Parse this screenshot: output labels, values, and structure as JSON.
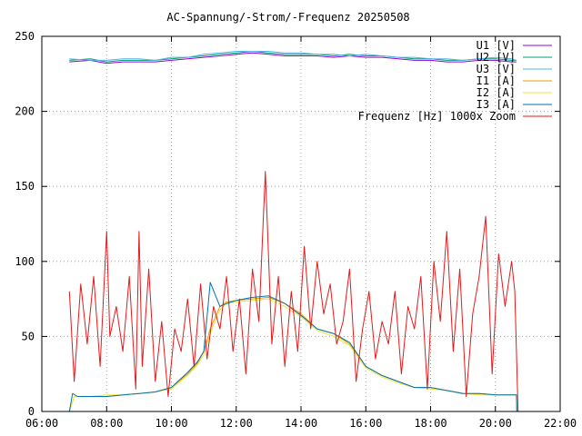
{
  "chart_data": {
    "type": "line",
    "title": "AC-Spannung/-Strom/-Frequenz 20250508",
    "xlabel": "",
    "ylabel": "",
    "xlim": [
      6,
      22
    ],
    "ylim": [
      0,
      250
    ],
    "x_ticks": [
      {
        "v": 6,
        "label": "06:00"
      },
      {
        "v": 8,
        "label": "08:00"
      },
      {
        "v": 10,
        "label": "10:00"
      },
      {
        "v": 12,
        "label": "12:00"
      },
      {
        "v": 14,
        "label": "14:00"
      },
      {
        "v": 16,
        "label": "16:00"
      },
      {
        "v": 18,
        "label": "18:00"
      },
      {
        "v": 20,
        "label": "20:00"
      },
      {
        "v": 22,
        "label": "22:00"
      }
    ],
    "y_ticks": [
      {
        "v": 0,
        "label": "0"
      },
      {
        "v": 50,
        "label": "50"
      },
      {
        "v": 100,
        "label": "100"
      },
      {
        "v": 150,
        "label": "150"
      },
      {
        "v": 200,
        "label": "200"
      },
      {
        "v": 250,
        "label": "250"
      }
    ],
    "grid": true,
    "legend_position": "top-right",
    "series": [
      {
        "name": "U1 [V]",
        "color": "#9400d3",
        "x": [
          6.85,
          7.5,
          8.0,
          8.5,
          9.0,
          9.5,
          10.0,
          10.5,
          11.0,
          11.5,
          12.0,
          12.5,
          13.0,
          13.5,
          14.0,
          14.5,
          15.0,
          15.5,
          16.0,
          16.5,
          17.0,
          17.5,
          18.0,
          18.5,
          19.0,
          19.5,
          20.0,
          20.5,
          20.65
        ],
        "y": [
          233,
          234,
          232,
          233,
          233,
          233,
          234,
          235,
          236,
          237,
          238,
          239,
          238,
          237,
          237,
          237,
          236,
          237,
          236,
          236,
          235,
          234,
          234,
          233,
          233,
          234,
          234,
          233,
          233
        ]
      },
      {
        "name": "U2 [V]",
        "color": "#009e73",
        "x": [
          6.85,
          7.5,
          8.0,
          8.5,
          9.0,
          9.5,
          10.0,
          10.5,
          11.0,
          11.5,
          12.0,
          12.5,
          13.0,
          13.5,
          14.0,
          14.5,
          15.0,
          15.5,
          16.0,
          16.5,
          17.0,
          17.5,
          18.0,
          18.5,
          19.0,
          19.5,
          20.0,
          20.5,
          20.65
        ],
        "y": [
          234,
          235,
          233,
          234,
          234,
          234,
          235,
          236,
          237,
          238,
          239,
          240,
          239,
          238,
          238,
          238,
          237,
          238,
          237,
          237,
          236,
          235,
          235,
          234,
          234,
          235,
          235,
          234,
          234
        ]
      },
      {
        "name": "U3 [V]",
        "color": "#56b4e9",
        "x": [
          6.85,
          7.5,
          8.0,
          8.5,
          9.0,
          9.5,
          10.0,
          10.5,
          11.0,
          11.5,
          12.0,
          12.5,
          13.0,
          13.5,
          14.0,
          14.5,
          15.0,
          15.5,
          16.0,
          16.5,
          17.0,
          17.5,
          18.0,
          18.5,
          19.0,
          19.5,
          20.0,
          20.5,
          20.65
        ],
        "y": [
          235,
          234,
          234,
          235,
          235,
          234,
          236,
          236,
          238,
          239,
          240,
          240,
          240,
          239,
          239,
          238,
          238,
          237,
          238,
          237,
          236,
          236,
          235,
          235,
          234,
          235,
          236,
          235,
          234
        ]
      },
      {
        "name": "I1 [A]",
        "color": "#e69f00",
        "x": [
          6.85,
          7.0,
          7.5,
          8.0,
          8.5,
          9.0,
          9.5,
          10.0,
          10.5,
          10.8,
          11.0,
          11.2,
          11.5,
          11.7,
          12.0,
          12.5,
          13.0,
          13.5,
          14.0,
          14.5,
          15.0,
          15.5,
          16.0,
          16.5,
          17.0,
          17.5,
          18.0,
          18.5,
          19.0,
          19.5,
          20.0,
          20.5,
          20.65,
          20.66
        ],
        "y": [
          0,
          10,
          10,
          10,
          11,
          12,
          13,
          16,
          25,
          32,
          40,
          55,
          70,
          73,
          74,
          75,
          76,
          72,
          65,
          55,
          52,
          45,
          30,
          24,
          20,
          16,
          16,
          14,
          12,
          12,
          11,
          11,
          11,
          0
        ]
      },
      {
        "name": "I2 [A]",
        "color": "#f0e442",
        "x": [
          6.85,
          7.0,
          7.5,
          8.0,
          8.5,
          9.0,
          9.5,
          10.0,
          10.5,
          10.8,
          11.0,
          11.2,
          11.5,
          11.7,
          12.0,
          12.5,
          13.0,
          13.5,
          14.0,
          14.5,
          15.0,
          15.5,
          16.0,
          16.5,
          17.0,
          17.5,
          18.0,
          18.5,
          19.0,
          19.5,
          20.0,
          20.5,
          20.65,
          20.66
        ],
        "y": [
          0,
          10,
          10,
          11,
          11,
          12,
          13,
          15,
          24,
          31,
          38,
          52,
          68,
          72,
          73,
          74,
          75,
          70,
          63,
          54,
          50,
          44,
          29,
          23,
          19,
          16,
          15,
          14,
          12,
          11,
          11,
          11,
          11,
          0
        ]
      },
      {
        "name": "I3 [A]",
        "color": "#0072b2",
        "x": [
          6.85,
          6.95,
          7.1,
          7.5,
          8.0,
          8.5,
          9.0,
          9.5,
          10.0,
          10.5,
          10.8,
          11.0,
          11.2,
          11.5,
          11.7,
          12.0,
          12.5,
          13.0,
          13.5,
          14.0,
          14.5,
          15.0,
          15.5,
          16.0,
          16.5,
          17.0,
          17.5,
          18.0,
          18.5,
          19.0,
          19.5,
          20.0,
          20.5,
          20.65,
          20.66
        ],
        "y": [
          0,
          12,
          10,
          10,
          10,
          11,
          12,
          13,
          16,
          26,
          33,
          40,
          86,
          70,
          72,
          74,
          76,
          77,
          72,
          64,
          55,
          52,
          46,
          30,
          24,
          20,
          16,
          16,
          14,
          12,
          12,
          11,
          11,
          11,
          0
        ]
      },
      {
        "name": "Frequenz [Hz] 1000x Zoom",
        "color": "#e41a1c",
        "x": [
          6.85,
          7.0,
          7.2,
          7.4,
          7.6,
          7.8,
          8.0,
          8.1,
          8.3,
          8.5,
          8.7,
          8.9,
          9.0,
          9.1,
          9.3,
          9.5,
          9.7,
          9.9,
          10.1,
          10.3,
          10.5,
          10.7,
          10.9,
          11.1,
          11.3,
          11.5,
          11.7,
          11.9,
          12.1,
          12.3,
          12.5,
          12.7,
          12.9,
          13.1,
          13.3,
          13.5,
          13.7,
          13.9,
          14.1,
          14.3,
          14.5,
          14.7,
          14.9,
          15.1,
          15.3,
          15.5,
          15.7,
          15.9,
          16.1,
          16.3,
          16.5,
          16.7,
          16.9,
          17.1,
          17.3,
          17.5,
          17.7,
          17.9,
          18.1,
          18.3,
          18.5,
          18.7,
          18.9,
          19.1,
          19.3,
          19.5,
          19.7,
          19.9,
          20.1,
          20.3,
          20.5,
          20.6,
          20.7
        ],
        "y": [
          80,
          20,
          85,
          45,
          90,
          30,
          120,
          50,
          70,
          40,
          90,
          15,
          120,
          30,
          95,
          20,
          60,
          10,
          55,
          40,
          75,
          30,
          85,
          35,
          70,
          55,
          90,
          40,
          75,
          25,
          95,
          60,
          160,
          45,
          90,
          30,
          80,
          40,
          110,
          55,
          100,
          65,
          85,
          45,
          60,
          95,
          20,
          55,
          80,
          35,
          60,
          45,
          80,
          25,
          70,
          55,
          90,
          15,
          100,
          60,
          120,
          40,
          95,
          10,
          65,
          90,
          130,
          25,
          105,
          70,
          100,
          80,
          0
        ]
      }
    ],
    "legend_entries": [
      {
        "label": "U1 [V]",
        "color": "#9400d3"
      },
      {
        "label": "U2 [V]",
        "color": "#009e73"
      },
      {
        "label": "U3 [V]",
        "color": "#56b4e9"
      },
      {
        "label": "I1 [A]",
        "color": "#e69f00"
      },
      {
        "label": "I2 [A]",
        "color": "#f0e442"
      },
      {
        "label": "I3 [A]",
        "color": "#0072b2"
      },
      {
        "label": "Frequenz [Hz] 1000x Zoom",
        "color": "#e41a1c"
      }
    ]
  }
}
